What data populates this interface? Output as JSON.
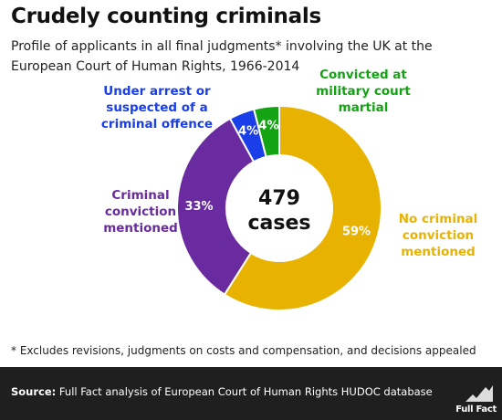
{
  "title": "Crudely counting criminals",
  "subtitle": "Profile of applicants in all final judgments* involving the UK at the European Court of Human Rights, 1966-2014",
  "footnote": "* Excludes revisions, judgments on costs and compensation, and decisions appealed",
  "source": {
    "label": "Source:",
    "text": "Full Fact analysis of European Court of Human Rights HUDOC database"
  },
  "logo": "Full Fact",
  "chart_data": {
    "type": "pie",
    "donut": true,
    "center_value": "479",
    "center_label": "cases",
    "slices": [
      {
        "label": "No criminal conviction mentioned",
        "value": 59,
        "pct_label": "59%",
        "color": "#e8b300"
      },
      {
        "label": "Criminal conviction mentioned",
        "value": 33,
        "pct_label": "33%",
        "color": "#6a2aa0"
      },
      {
        "label": "Under arrest or suspected of a criminal offence",
        "value": 4,
        "pct_label": "4%",
        "color": "#1a3ee8"
      },
      {
        "label": "Convicted at military court martial",
        "value": 4,
        "pct_label": "4%",
        "color": "#13a313"
      }
    ],
    "label_lines": [
      [
        "No criminal",
        "conviction",
        "mentioned"
      ],
      [
        "Criminal",
        "conviction",
        "mentioned"
      ],
      [
        "Under arrest or",
        "suspected of a",
        "criminal offence"
      ],
      [
        "Convicted at",
        "military court",
        "martial"
      ]
    ]
  }
}
